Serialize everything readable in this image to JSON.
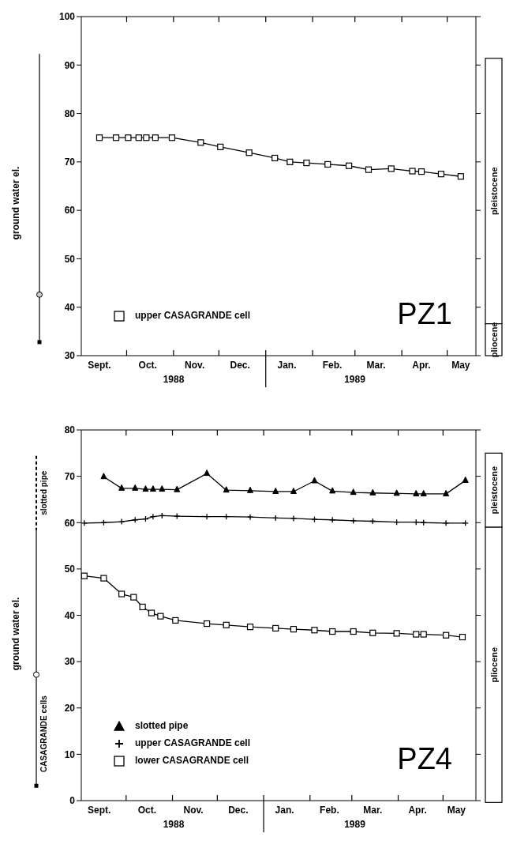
{
  "chart_data": [
    {
      "type": "line",
      "title": "PZ1",
      "ylabel": "ground water el.",
      "xlim": [
        "1988-09-01",
        "1989-05-20"
      ],
      "ylim": [
        30,
        100
      ],
      "yticks": [
        30,
        40,
        50,
        60,
        70,
        80,
        90,
        100
      ],
      "xticks": [
        {
          "value": "1988-09-13",
          "label": "Sept."
        },
        {
          "value": "1988-10-01",
          "label": null
        },
        {
          "value": "1988-10-15",
          "label": "Oct."
        },
        {
          "value": "1988-11-01",
          "label": null
        },
        {
          "value": "1988-11-15",
          "label": "Nov."
        },
        {
          "value": "1988-12-01",
          "label": null
        },
        {
          "value": "1988-12-15",
          "label": "Dec."
        },
        {
          "value": "1989-01-01",
          "label": null
        },
        {
          "value": "1989-01-15",
          "label": "Jan."
        },
        {
          "value": "1989-02-01",
          "label": null
        },
        {
          "value": "1989-02-14",
          "label": "Feb."
        },
        {
          "value": "1989-03-01",
          "label": null
        },
        {
          "value": "1989-03-15",
          "label": "Mar."
        },
        {
          "value": "1989-04-01",
          "label": null
        },
        {
          "value": "1989-04-14",
          "label": "Apr."
        },
        {
          "value": "1989-05-01",
          "label": null
        },
        {
          "value": "1989-05-10",
          "label": "May"
        }
      ],
      "legend": "bottom left",
      "series": [
        {
          "name": "upper CASAGRANDE cell",
          "color": "#000000",
          "marker": "square",
          "x": [
            "1988-09-13",
            "1988-09-24",
            "1988-10-02",
            "1988-10-09",
            "1988-10-14",
            "1988-10-20",
            "1988-10-31",
            "1988-11-19",
            "1988-12-02",
            "1988-12-21",
            "1989-01-07",
            "1989-01-17",
            "1989-01-28",
            "1989-02-11",
            "1989-02-25",
            "1989-03-10",
            "1989-03-25",
            "1989-04-08",
            "1989-04-14",
            "1989-04-27",
            "1989-05-10"
          ],
          "values": [
            75,
            75,
            75,
            75,
            75,
            75,
            75,
            74,
            73.1,
            71.9,
            70.8,
            70,
            69.8,
            69.5,
            69.2,
            68.4,
            68.6,
            68.1,
            68,
            67.5,
            67
          ]
        }
      ],
      "annotations": [
        "1988",
        "1989",
        "pleistocene",
        "pliocene"
      ]
    },
    {
      "type": "line",
      "title": "PZ4",
      "ylabel": "ground water el.",
      "xlim": [
        "1988-09-01",
        "1989-05-23"
      ],
      "ylim": [
        0,
        80
      ],
      "yticks": [
        0,
        10,
        20,
        30,
        40,
        50,
        60,
        70,
        80
      ],
      "xticks": [
        {
          "value": "1988-09-13",
          "label": "Sept."
        },
        {
          "value": "1988-10-01",
          "label": null
        },
        {
          "value": "1988-10-15",
          "label": "Oct."
        },
        {
          "value": "1988-11-01",
          "label": null
        },
        {
          "value": "1988-11-15",
          "label": "Nov."
        },
        {
          "value": "1988-12-01",
          "label": null
        },
        {
          "value": "1988-12-15",
          "label": "Dec."
        },
        {
          "value": "1989-01-01",
          "label": null
        },
        {
          "value": "1989-01-15",
          "label": "Jan."
        },
        {
          "value": "1989-02-01",
          "label": null
        },
        {
          "value": "1989-02-14",
          "label": "Feb."
        },
        {
          "value": "1989-03-01",
          "label": null
        },
        {
          "value": "1989-03-15",
          "label": "Mar."
        },
        {
          "value": "1989-04-01",
          "label": null
        },
        {
          "value": "1989-04-14",
          "label": "Apr."
        },
        {
          "value": "1989-05-01",
          "label": null
        },
        {
          "value": "1989-05-10",
          "label": "May"
        }
      ],
      "legend": "bottom left",
      "series": [
        {
          "name": "slotted pipe",
          "color": "#000000",
          "marker": "triangle",
          "x": [
            "1988-09-16",
            "1988-09-28",
            "1988-10-07",
            "1988-10-14",
            "1988-10-19",
            "1988-10-25",
            "1988-11-04",
            "1988-11-24",
            "1988-12-07",
            "1988-12-23",
            "1989-01-09",
            "1989-01-21",
            "1989-02-04",
            "1989-02-16",
            "1989-03-02",
            "1989-03-15",
            "1989-03-31",
            "1989-04-13",
            "1989-04-18",
            "1989-05-03",
            "1989-05-16"
          ],
          "values": [
            69.9,
            67.4,
            67.4,
            67.2,
            67.2,
            67.2,
            67.1,
            70.6,
            67,
            66.9,
            66.7,
            66.7,
            69,
            66.8,
            66.5,
            66.4,
            66.3,
            66.2,
            66.2,
            66.2,
            69.1
          ]
        },
        {
          "name": "upper CASAGRANDE cell",
          "color": "#000000",
          "marker": "cross",
          "x": [
            "1988-09-03",
            "1988-09-16",
            "1988-09-28",
            "1988-10-07",
            "1988-10-14",
            "1988-10-19",
            "1988-10-25",
            "1988-11-04",
            "1988-11-24",
            "1988-12-07",
            "1988-12-23",
            "1989-01-09",
            "1989-01-21",
            "1989-02-04",
            "1989-02-16",
            "1989-03-02",
            "1989-03-15",
            "1989-03-31",
            "1989-04-13",
            "1989-04-18",
            "1989-05-03",
            "1989-05-16"
          ],
          "values": [
            59.9,
            60,
            60.2,
            60.6,
            60.8,
            61.3,
            61.5,
            61.4,
            61.3,
            61.3,
            61.2,
            61,
            60.9,
            60.7,
            60.6,
            60.4,
            60.3,
            60.1,
            60.1,
            60,
            59.9,
            59.9
          ]
        },
        {
          "name": "lower CASAGRANDE cell",
          "color": "#000000",
          "marker": "square",
          "x": [
            "1988-09-03",
            "1988-09-16",
            "1988-09-28",
            "1988-10-06",
            "1988-10-12",
            "1988-10-18",
            "1988-10-24",
            "1988-11-03",
            "1988-11-24",
            "1988-12-07",
            "1988-12-23",
            "1989-01-09",
            "1989-01-21",
            "1989-02-04",
            "1989-02-16",
            "1989-03-02",
            "1989-03-15",
            "1989-03-31",
            "1989-04-13",
            "1989-04-18",
            "1989-05-03",
            "1989-05-14"
          ],
          "values": [
            48.5,
            48,
            44.6,
            43.9,
            41.8,
            40.5,
            39.8,
            38.9,
            38.2,
            37.9,
            37.5,
            37.2,
            37,
            36.8,
            36.5,
            36.5,
            36.2,
            36.1,
            35.9,
            35.9,
            35.7,
            35.3
          ]
        }
      ],
      "annotations": [
        "1988",
        "1989",
        "slotted pipe",
        "CASAGRANDE cells",
        "pleistocene",
        "pliocene"
      ]
    }
  ]
}
